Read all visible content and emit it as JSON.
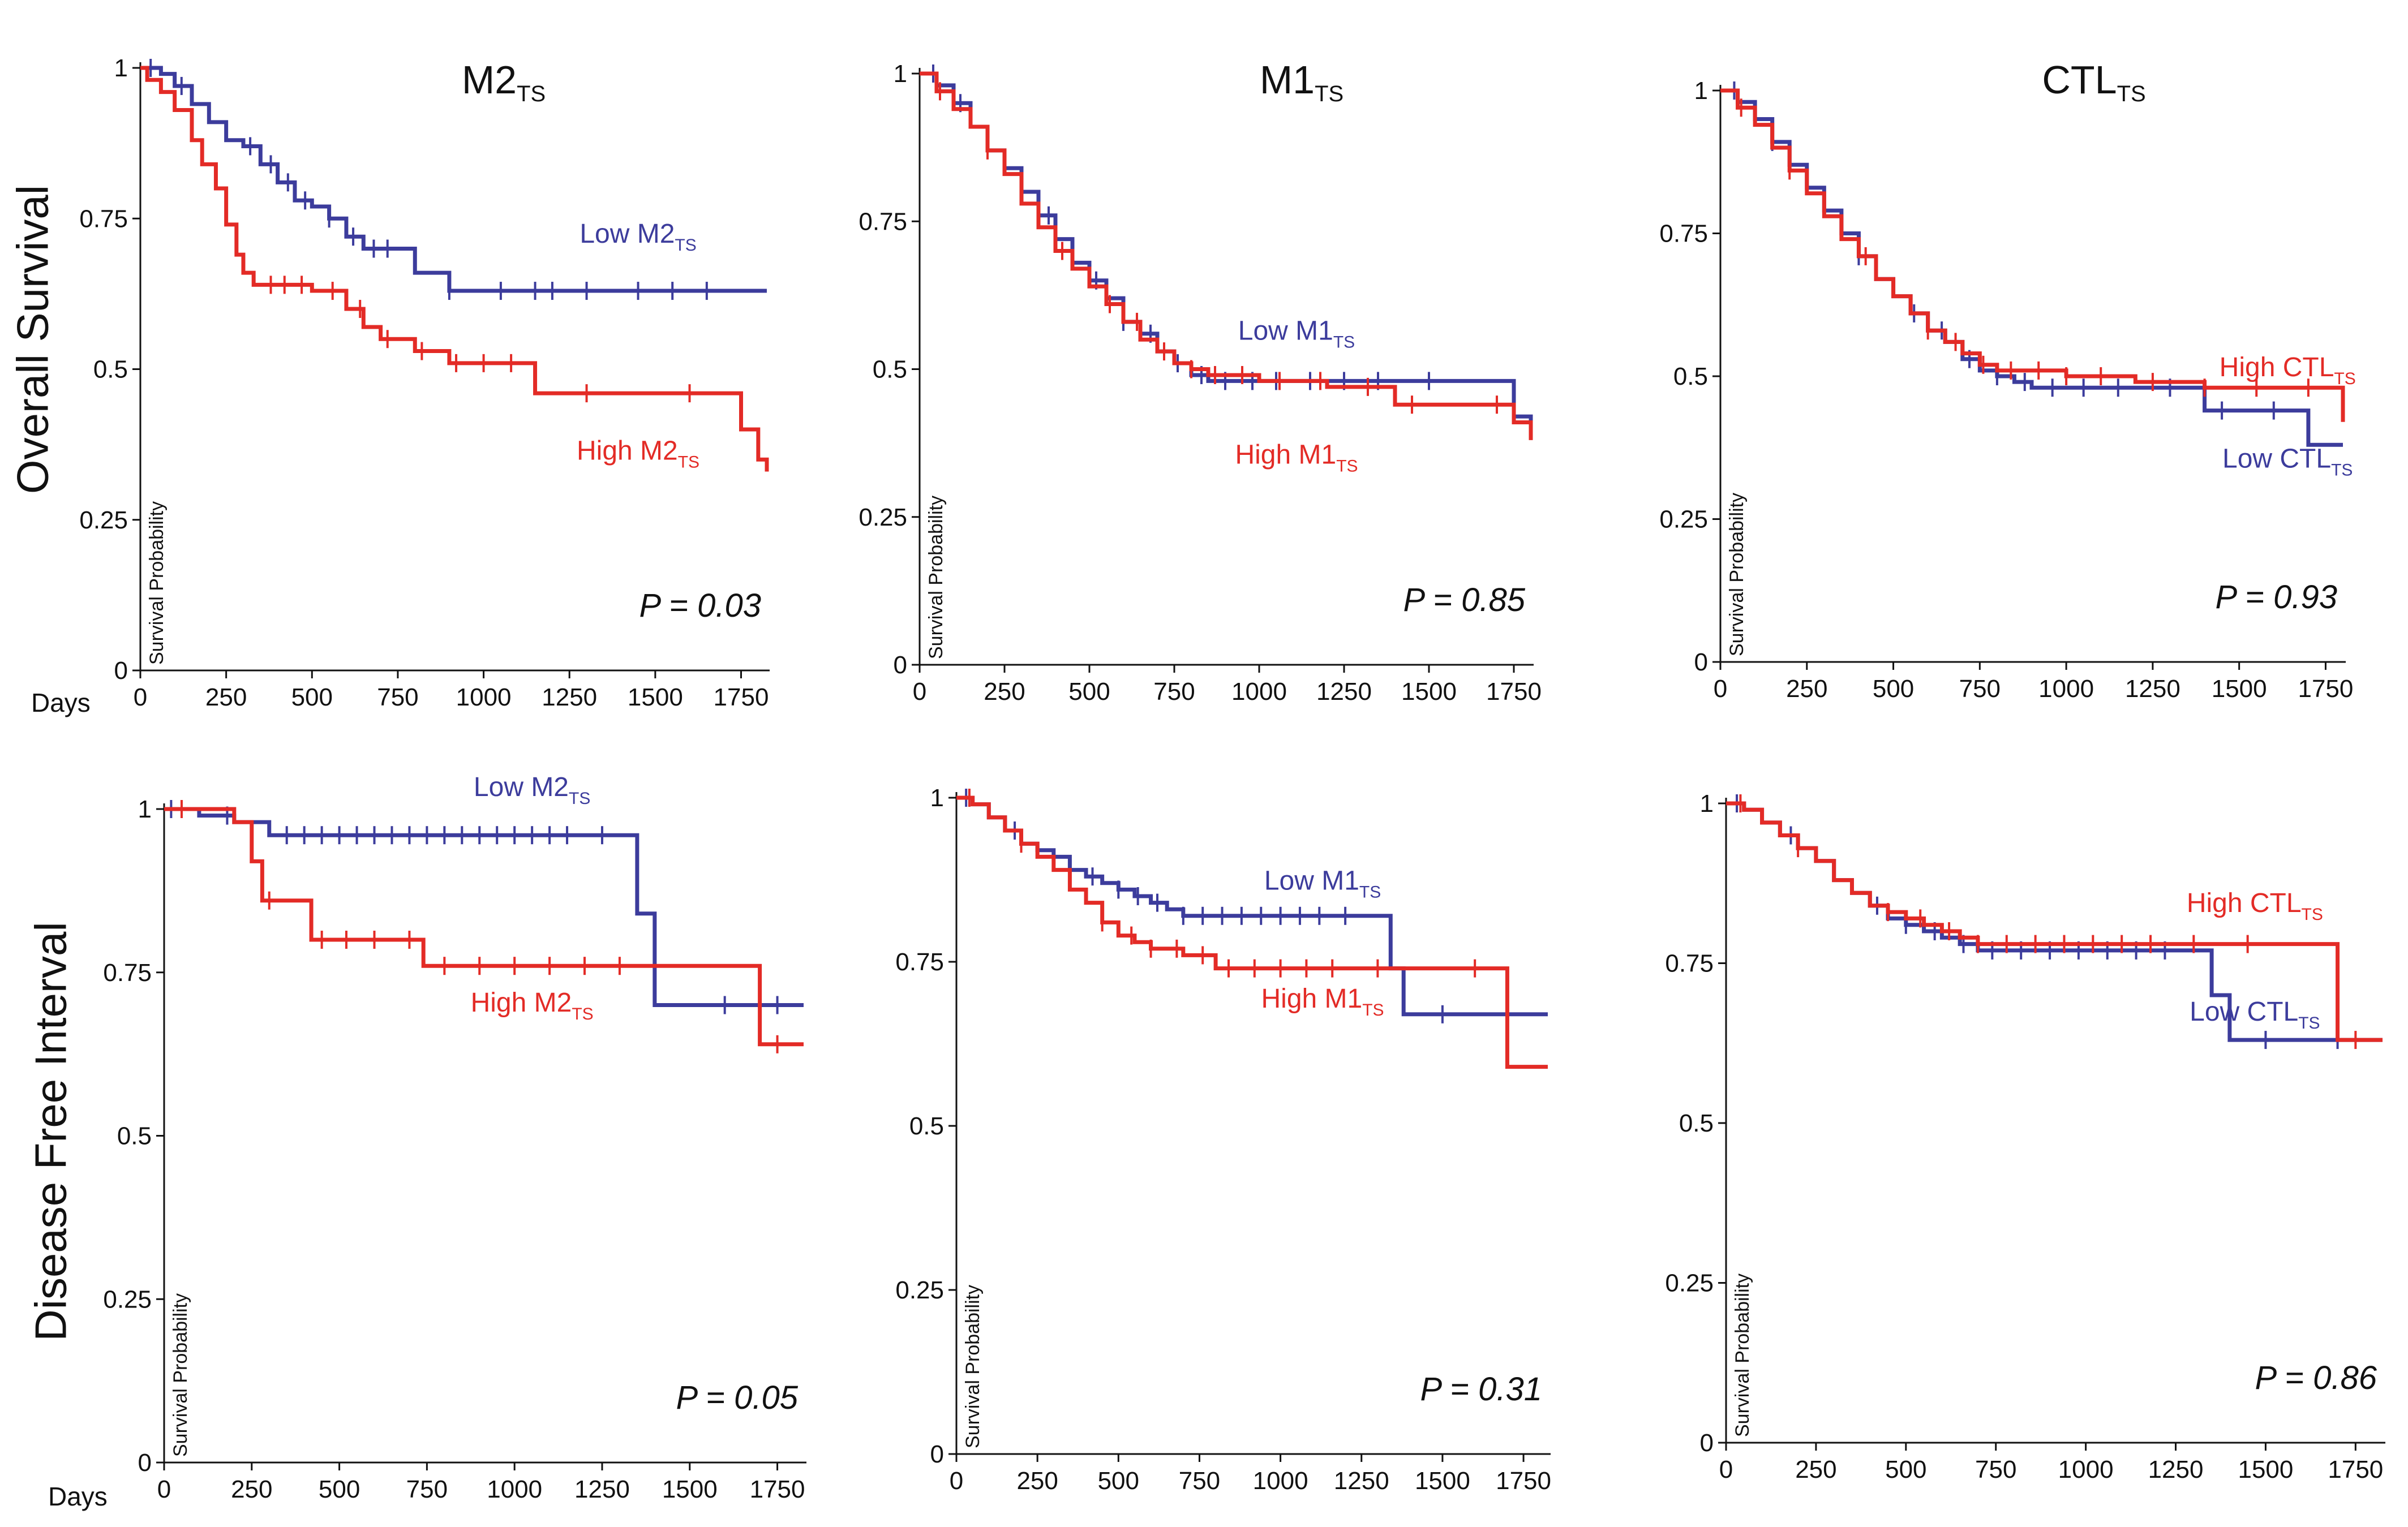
{
  "row_labels": {
    "overall_survival": "Overall Survival",
    "disease_free_interval": "Disease Free Interval"
  },
  "days_label": "Days",
  "colors": {
    "low": "#3c3c9c",
    "high": "#e32b26",
    "axis": "#111111",
    "text": "#111111"
  },
  "chart_data": [
    {
      "type": "line",
      "subtype": "kaplan-meier",
      "title": "M2",
      "title_sub": "TS",
      "ylabel": "Survival Probability",
      "xlabel": "Days",
      "xlim": [
        0,
        1825
      ],
      "ylim": [
        0,
        1
      ],
      "x_ticks": [
        "0",
        "250",
        "500",
        "750",
        "1000",
        "1250",
        "1500",
        "1750"
      ],
      "y_ticks": [
        "0",
        "0.25",
        "0.5",
        "0.75",
        "1"
      ],
      "p_value": "P = 0.03",
      "series": [
        {
          "name": "Low M2",
          "name_sub": "TS",
          "group": "low",
          "label_anchor": [
            1450,
            0.71
          ],
          "x": [
            0,
            60,
            100,
            150,
            200,
            250,
            300,
            350,
            400,
            450,
            500,
            550,
            600,
            650,
            800,
            900,
            1000,
            1825
          ],
          "y": [
            1,
            0.99,
            0.97,
            0.94,
            0.91,
            0.88,
            0.87,
            0.84,
            0.81,
            0.78,
            0.77,
            0.75,
            0.72,
            0.7,
            0.66,
            0.63,
            0.63,
            0.63
          ],
          "censor_x": [
            30,
            120,
            320,
            380,
            430,
            480,
            550,
            620,
            680,
            720,
            900,
            1050,
            1150,
            1200,
            1300,
            1450,
            1550,
            1650
          ]
        },
        {
          "name": "High M2",
          "name_sub": "TS",
          "group": "high",
          "label_anchor": [
            1450,
            0.35
          ],
          "x": [
            0,
            20,
            60,
            100,
            150,
            180,
            220,
            250,
            280,
            300,
            330,
            370,
            500,
            600,
            650,
            700,
            800,
            900,
            1000,
            1150,
            1250,
            1750,
            1800,
            1825
          ],
          "y": [
            1,
            0.98,
            0.96,
            0.93,
            0.88,
            0.84,
            0.8,
            0.74,
            0.69,
            0.66,
            0.64,
            0.64,
            0.63,
            0.6,
            0.57,
            0.55,
            0.53,
            0.51,
            0.51,
            0.46,
            0.46,
            0.4,
            0.35,
            0.33
          ],
          "censor_x": [
            380,
            420,
            470,
            560,
            640,
            720,
            820,
            920,
            1000,
            1080,
            1300,
            1600
          ]
        }
      ]
    },
    {
      "type": "line",
      "subtype": "kaplan-meier",
      "title": "M1",
      "title_sub": "TS",
      "ylabel": "Survival Probability",
      "xlabel": "Days",
      "xlim": [
        0,
        1800
      ],
      "ylim": [
        0,
        1
      ],
      "x_ticks": [
        "0",
        "250",
        "500",
        "750",
        "1000",
        "1250",
        "1500",
        "1750"
      ],
      "y_ticks": [
        "0",
        "0.25",
        "0.5",
        "0.75",
        "1"
      ],
      "p_value": "P = 0.85",
      "series": [
        {
          "name": "Low M1",
          "name_sub": "TS",
          "group": "low",
          "label_anchor": [
            1110,
            0.55
          ],
          "x": [
            0,
            50,
            100,
            150,
            200,
            250,
            300,
            350,
            400,
            450,
            500,
            550,
            600,
            650,
            700,
            750,
            800,
            850,
            900,
            1000,
            1200,
            1400,
            1750,
            1800
          ],
          "y": [
            1,
            0.98,
            0.95,
            0.91,
            0.87,
            0.84,
            0.8,
            0.76,
            0.72,
            0.68,
            0.65,
            0.62,
            0.58,
            0.56,
            0.53,
            0.51,
            0.49,
            0.48,
            0.48,
            0.48,
            0.48,
            0.48,
            0.42,
            0.4
          ],
          "censor_x": [
            40,
            120,
            380,
            520,
            600,
            680,
            760,
            830,
            900,
            980,
            1050,
            1150,
            1250,
            1350,
            1500
          ]
        },
        {
          "name": "High M1",
          "name_sub": "TS",
          "group": "high",
          "label_anchor": [
            1110,
            0.34
          ],
          "x": [
            0,
            50,
            100,
            150,
            200,
            250,
            300,
            350,
            400,
            450,
            500,
            550,
            600,
            650,
            700,
            750,
            800,
            850,
            900,
            1000,
            1200,
            1400,
            1750,
            1800
          ],
          "y": [
            1,
            0.97,
            0.94,
            0.91,
            0.87,
            0.83,
            0.78,
            0.74,
            0.7,
            0.67,
            0.64,
            0.61,
            0.58,
            0.55,
            0.53,
            0.51,
            0.5,
            0.49,
            0.49,
            0.48,
            0.47,
            0.44,
            0.41,
            0.38
          ],
          "censor_x": [
            60,
            200,
            420,
            560,
            640,
            720,
            800,
            870,
            950,
            1060,
            1180,
            1320,
            1450,
            1700
          ]
        }
      ]
    },
    {
      "type": "line",
      "subtype": "kaplan-meier",
      "title": "CTL",
      "title_sub": "TS",
      "ylabel": "Survival Probability",
      "xlabel": "Days",
      "xlim": [
        0,
        1800
      ],
      "ylim": [
        0,
        1
      ],
      "x_ticks": [
        "0",
        "250",
        "500",
        "750",
        "1000",
        "1250",
        "1500",
        "1750"
      ],
      "y_ticks": [
        "0",
        "0.25",
        "0.5",
        "0.75",
        "1"
      ],
      "p_value": "P = 0.93",
      "series": [
        {
          "name": "Low CTL",
          "name_sub": "TS",
          "group": "low",
          "label_anchor": [
            1640,
            0.34
          ],
          "x": [
            0,
            50,
            100,
            150,
            200,
            250,
            300,
            350,
            400,
            450,
            500,
            550,
            600,
            650,
            700,
            750,
            800,
            850,
            900,
            1000,
            1200,
            1400,
            1700,
            1800
          ],
          "y": [
            1,
            0.98,
            0.95,
            0.91,
            0.87,
            0.83,
            0.79,
            0.75,
            0.71,
            0.67,
            0.64,
            0.61,
            0.58,
            0.56,
            0.53,
            0.51,
            0.5,
            0.49,
            0.48,
            0.48,
            0.48,
            0.44,
            0.38,
            0.38
          ],
          "censor_x": [
            40,
            150,
            400,
            560,
            640,
            720,
            800,
            880,
            960,
            1050,
            1150,
            1300,
            1450,
            1600
          ]
        },
        {
          "name": "High CTL",
          "name_sub": "TS",
          "group": "high",
          "label_anchor": [
            1640,
            0.5
          ],
          "x": [
            0,
            50,
            100,
            150,
            200,
            250,
            300,
            350,
            400,
            450,
            500,
            550,
            600,
            650,
            700,
            750,
            800,
            850,
            900,
            1000,
            1200,
            1400,
            1780,
            1800
          ],
          "y": [
            1,
            0.97,
            0.94,
            0.9,
            0.86,
            0.82,
            0.78,
            0.74,
            0.71,
            0.67,
            0.64,
            0.61,
            0.58,
            0.56,
            0.54,
            0.52,
            0.51,
            0.51,
            0.51,
            0.5,
            0.49,
            0.48,
            0.48,
            0.42
          ],
          "censor_x": [
            60,
            200,
            420,
            600,
            680,
            760,
            840,
            920,
            1000,
            1100,
            1250,
            1400,
            1550,
            1700
          ]
        }
      ]
    },
    {
      "type": "line",
      "subtype": "kaplan-meier",
      "title": "",
      "title_sub": "",
      "ylabel": "Survival Probability",
      "xlabel": "Days",
      "xlim": [
        0,
        1825
      ],
      "ylim": [
        0,
        1
      ],
      "x_ticks": [
        "0",
        "250",
        "500",
        "750",
        "1000",
        "1250",
        "1500",
        "1750"
      ],
      "y_ticks": [
        "0",
        "0.25",
        "0.5",
        "0.75",
        "1"
      ],
      "p_value": "P = 0.05",
      "series": [
        {
          "name": "Low M2",
          "name_sub": "TS",
          "group": "low",
          "label_anchor": [
            1050,
            1.02
          ],
          "x": [
            0,
            50,
            100,
            200,
            300,
            1300,
            1350,
            1400,
            1825
          ],
          "y": [
            1,
            1,
            0.99,
            0.98,
            0.96,
            0.96,
            0.84,
            0.7,
            0.7
          ],
          "censor_x": [
            20,
            180,
            350,
            400,
            450,
            500,
            550,
            600,
            650,
            700,
            750,
            800,
            850,
            900,
            950,
            1000,
            1050,
            1100,
            1150,
            1250,
            1600,
            1750
          ]
        },
        {
          "name": "High M2",
          "name_sub": "TS",
          "group": "high",
          "label_anchor": [
            1050,
            0.69
          ],
          "x": [
            0,
            100,
            200,
            250,
            280,
            420,
            500,
            740,
            1000,
            1250,
            1650,
            1700,
            1825
          ],
          "y": [
            1,
            1,
            0.98,
            0.92,
            0.86,
            0.8,
            0.8,
            0.76,
            0.76,
            0.76,
            0.76,
            0.64,
            0.64
          ],
          "censor_x": [
            50,
            300,
            450,
            520,
            600,
            700,
            800,
            900,
            1000,
            1100,
            1200,
            1300,
            1750
          ]
        }
      ]
    },
    {
      "type": "line",
      "subtype": "kaplan-meier",
      "title": "",
      "title_sub": "",
      "ylabel": "Survival Probability",
      "xlabel": "",
      "xlim": [
        0,
        1825
      ],
      "ylim": [
        0,
        1
      ],
      "x_ticks": [
        "0",
        "250",
        "500",
        "750",
        "1000",
        "1250",
        "1500",
        "1750"
      ],
      "y_ticks": [
        "0",
        "0.25",
        "0.5",
        "0.75",
        "1"
      ],
      "p_value": "P = 0.31",
      "series": [
        {
          "name": "Low M1",
          "name_sub": "TS",
          "group": "low",
          "label_anchor": [
            1130,
            0.86
          ],
          "x": [
            0,
            50,
            100,
            150,
            200,
            250,
            300,
            350,
            400,
            450,
            500,
            550,
            600,
            650,
            700,
            750,
            1300,
            1340,
            1380,
            1825
          ],
          "y": [
            1,
            0.99,
            0.97,
            0.95,
            0.93,
            0.92,
            0.91,
            0.89,
            0.88,
            0.87,
            0.86,
            0.85,
            0.84,
            0.83,
            0.82,
            0.82,
            0.82,
            0.74,
            0.67,
            0.67
          ],
          "censor_x": [
            30,
            180,
            420,
            500,
            560,
            620,
            700,
            760,
            820,
            880,
            940,
            1000,
            1060,
            1120,
            1200,
            1500,
            1700
          ]
        },
        {
          "name": "High M1",
          "name_sub": "TS",
          "group": "high",
          "label_anchor": [
            1130,
            0.68
          ],
          "x": [
            0,
            50,
            100,
            150,
            200,
            250,
            300,
            350,
            400,
            450,
            500,
            550,
            600,
            700,
            800,
            1000,
            1250,
            1500,
            1650,
            1700,
            1825
          ],
          "y": [
            1,
            0.99,
            0.97,
            0.95,
            0.93,
            0.91,
            0.89,
            0.86,
            0.84,
            0.81,
            0.79,
            0.78,
            0.77,
            0.76,
            0.74,
            0.74,
            0.74,
            0.74,
            0.74,
            0.59,
            0.59
          ],
          "censor_x": [
            40,
            200,
            450,
            540,
            600,
            680,
            760,
            840,
            920,
            1000,
            1080,
            1160,
            1300,
            1600
          ]
        }
      ]
    },
    {
      "type": "line",
      "subtype": "kaplan-meier",
      "title": "",
      "title_sub": "",
      "ylabel": "Survival Probability",
      "xlabel": "",
      "xlim": [
        0,
        1825
      ],
      "ylim": [
        0,
        1
      ],
      "x_ticks": [
        "0",
        "250",
        "500",
        "750",
        "1000",
        "1250",
        "1500",
        "1750"
      ],
      "y_ticks": [
        "0",
        "0.25",
        "0.5",
        "0.75",
        "1"
      ],
      "p_value": "P = 0.86",
      "series": [
        {
          "name": "Low CTL",
          "name_sub": "TS",
          "group": "low",
          "label_anchor": [
            1470,
            0.66
          ],
          "x": [
            0,
            50,
            100,
            150,
            200,
            250,
            300,
            350,
            400,
            450,
            500,
            550,
            600,
            650,
            700,
            1300,
            1350,
            1400,
            1825
          ],
          "y": [
            1,
            0.99,
            0.97,
            0.95,
            0.93,
            0.91,
            0.88,
            0.86,
            0.84,
            0.82,
            0.81,
            0.8,
            0.79,
            0.78,
            0.77,
            0.77,
            0.7,
            0.63,
            0.63
          ],
          "censor_x": [
            30,
            180,
            420,
            500,
            580,
            660,
            740,
            820,
            900,
            980,
            1060,
            1140,
            1220,
            1500,
            1700
          ]
        },
        {
          "name": "High CTL",
          "name_sub": "TS",
          "group": "high",
          "label_anchor": [
            1470,
            0.83
          ],
          "x": [
            0,
            50,
            100,
            150,
            200,
            250,
            300,
            350,
            400,
            450,
            500,
            550,
            600,
            650,
            700,
            800,
            1200,
            1650,
            1700,
            1825
          ],
          "y": [
            1,
            0.99,
            0.97,
            0.95,
            0.93,
            0.91,
            0.88,
            0.86,
            0.84,
            0.83,
            0.82,
            0.81,
            0.8,
            0.79,
            0.78,
            0.78,
            0.78,
            0.78,
            0.63,
            0.63
          ],
          "censor_x": [
            40,
            200,
            450,
            540,
            620,
            700,
            780,
            860,
            940,
            1020,
            1100,
            1180,
            1300,
            1450,
            1750
          ]
        }
      ]
    }
  ]
}
